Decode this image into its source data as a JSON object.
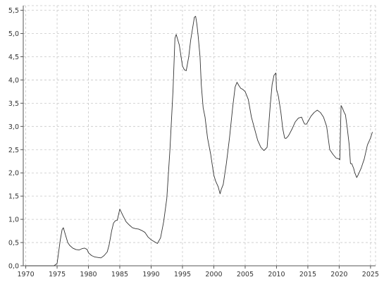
{
  "chart_data": {
    "type": "line",
    "title": "",
    "xlabel": "",
    "ylabel": "",
    "xlim": [
      1969.6,
      2025.8
    ],
    "ylim": [
      0,
      5.6
    ],
    "x_ticks": [
      1970,
      1975,
      1980,
      1985,
      1990,
      1995,
      2000,
      2005,
      2010,
      2015,
      2020,
      2025
    ],
    "y_ticks": [
      0,
      0.5,
      1,
      1.5,
      2,
      2.5,
      3,
      3.5,
      4,
      4.5,
      5,
      5.5
    ],
    "x_tick_labels": [
      "1970",
      "1975",
      "1980",
      "1985",
      "1990",
      "1995",
      "2000",
      "2005",
      "2010",
      "2015",
      "2020",
      "2025"
    ],
    "y_tick_labels": [
      "0,0",
      "0,5",
      "1,0",
      "1,5",
      "2,0",
      "2,5",
      "3,0",
      "3,5",
      "4,0",
      "4,5",
      "5,0",
      "5,5"
    ],
    "grid": true,
    "legend": "none",
    "line_color": "#333333",
    "grid_color": "#c8c8c8",
    "series": [
      {
        "x": [
          1970.0,
          1974.5,
          1975.0,
          1975.5,
          1975.8,
          1976.0,
          1976.3,
          1976.7,
          1977.0,
          1977.5,
          1978.0,
          1978.5,
          1979.0,
          1979.4,
          1979.8,
          1980.0,
          1980.5,
          1981.0,
          1981.5,
          1982.0,
          1982.5,
          1983.0,
          1983.3,
          1983.7,
          1984.0,
          1984.3,
          1984.6,
          1985.0,
          1985.5,
          1986.0,
          1986.5,
          1987.0,
          1987.5,
          1988.0,
          1988.5,
          1989.0,
          1989.5,
          1990.0,
          1990.5,
          1991.0,
          1991.5,
          1992.0,
          1992.5,
          1993.0,
          1993.5,
          1993.8,
          1994.0,
          1994.5,
          1995.0,
          1995.3,
          1995.6,
          1996.0,
          1996.3,
          1996.6,
          1996.9,
          1997.1,
          1997.3,
          1997.5,
          1997.8,
          1998.0,
          1998.3,
          1998.6,
          1999.0,
          1999.5,
          2000.0,
          2000.3,
          2000.7,
          2001.0,
          2001.2,
          2001.5,
          2002.0,
          2002.5,
          2003.0,
          2003.4,
          2003.7,
          2004.0,
          2004.3,
          2004.6,
          2005.0,
          2005.5,
          2006.0,
          2006.5,
          2007.0,
          2007.5,
          2008.0,
          2008.5,
          2009.0,
          2009.3,
          2009.6,
          2009.9,
          2010.0,
          2010.3,
          2010.7,
          2011.0,
          2011.3,
          2011.5,
          2011.8,
          2012.0,
          2012.5,
          2013.0,
          2013.5,
          2014.0,
          2014.3,
          2014.5,
          2014.8,
          2015.0,
          2015.5,
          2016.0,
          2016.5,
          2017.0,
          2017.5,
          2018.0,
          2018.2,
          2018.5,
          2019.0,
          2019.5,
          2020.0,
          2020.1,
          2020.3,
          2020.5,
          2020.8,
          2021.0,
          2021.3,
          2021.6,
          2021.8,
          2022.0,
          2022.3,
          2022.5,
          2022.8,
          2023.0,
          2023.5,
          2024.0,
          2024.5,
          2025.0,
          2025.3
        ],
        "values": [
          0.0,
          0.0,
          0.05,
          0.55,
          0.78,
          0.82,
          0.68,
          0.5,
          0.44,
          0.38,
          0.35,
          0.34,
          0.37,
          0.38,
          0.35,
          0.28,
          0.22,
          0.19,
          0.18,
          0.17,
          0.22,
          0.3,
          0.45,
          0.75,
          0.92,
          0.97,
          0.98,
          1.22,
          1.08,
          0.95,
          0.88,
          0.82,
          0.8,
          0.79,
          0.76,
          0.72,
          0.62,
          0.56,
          0.52,
          0.48,
          0.6,
          0.95,
          1.45,
          2.5,
          3.8,
          4.9,
          4.98,
          4.75,
          4.3,
          4.22,
          4.2,
          4.5,
          4.85,
          5.1,
          5.35,
          5.37,
          5.2,
          4.95,
          4.5,
          3.9,
          3.4,
          3.2,
          2.75,
          2.4,
          1.95,
          1.82,
          1.7,
          1.55,
          1.65,
          1.75,
          2.2,
          2.75,
          3.4,
          3.85,
          3.95,
          3.88,
          3.82,
          3.8,
          3.75,
          3.58,
          3.2,
          2.95,
          2.7,
          2.55,
          2.48,
          2.55,
          3.45,
          3.9,
          4.1,
          4.15,
          3.8,
          3.65,
          3.3,
          2.95,
          2.75,
          2.74,
          2.78,
          2.82,
          2.95,
          3.1,
          3.18,
          3.2,
          3.1,
          3.05,
          3.05,
          3.1,
          3.22,
          3.3,
          3.35,
          3.3,
          3.2,
          3.0,
          2.8,
          2.5,
          2.4,
          2.32,
          2.3,
          2.28,
          3.45,
          3.4,
          3.3,
          3.25,
          2.95,
          2.6,
          2.2,
          2.2,
          2.1,
          2.0,
          1.9,
          1.95,
          2.1,
          2.3,
          2.6,
          2.75,
          2.88
        ]
      }
    ]
  }
}
